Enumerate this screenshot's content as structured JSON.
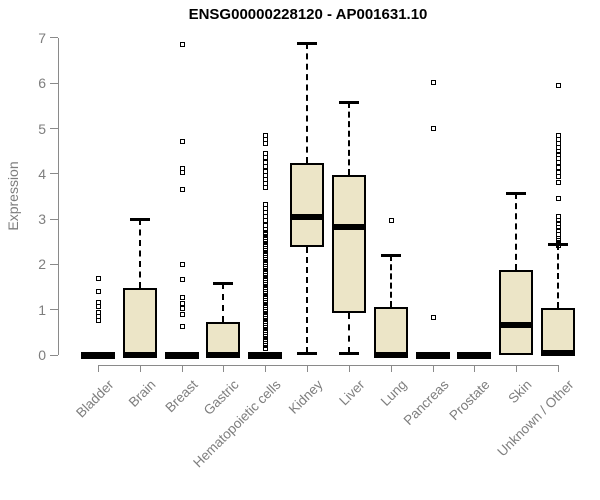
{
  "colors": {
    "box_fill": "#ECE5C7",
    "box_border": "#000000",
    "median": "#000000",
    "whisker": "#000000",
    "outlier": "#000000",
    "axis": "#8A8A8A",
    "tick_label": "#7E7E7E",
    "title": "#000000",
    "background": "#FFFFFF"
  },
  "chart_data": {
    "type": "boxplot",
    "title": "ENSG00000228120 - AP001631.10",
    "ylabel": "Expression",
    "xlabel": "",
    "ylim": [
      0,
      7
    ],
    "yticks": [
      0,
      1,
      2,
      3,
      4,
      5,
      6,
      7
    ],
    "grid": false,
    "legend": "none",
    "categories": [
      "Bladder",
      "Brain",
      "Breast",
      "Gastric",
      "Hematopoietic cells",
      "Kidney",
      "Liver",
      "Lung",
      "Pancreas",
      "Prostate",
      "Skin",
      "Unknown / Other"
    ],
    "series": [
      {
        "name": "Bladder",
        "low": 0,
        "q1": 0,
        "median": 0,
        "q3": 0,
        "high": 0,
        "outliers": [
          1.68,
          1.4,
          1.15,
          1.07,
          0.93,
          0.85,
          0.77
        ]
      },
      {
        "name": "Brain",
        "low": 0,
        "q1": 0,
        "median": 0,
        "q3": 1.48,
        "high": 3.0,
        "outliers": []
      },
      {
        "name": "Breast",
        "low": 0,
        "q1": 0,
        "median": 0,
        "q3": 0,
        "high": 0,
        "outliers": [
          6.85,
          4.72,
          4.12,
          4.04,
          3.66,
          1.99,
          1.66,
          1.26,
          1.14,
          1.02,
          0.9,
          0.62
        ]
      },
      {
        "name": "Gastric",
        "low": 0,
        "q1": 0,
        "median": 0,
        "q3": 0.73,
        "high": 1.58,
        "outliers": []
      },
      {
        "name": "Hematopoietic cells",
        "low": 0,
        "q1": 0,
        "median": 0,
        "q3": 0,
        "high": 0,
        "outliers": [
          0.15,
          0.2,
          0.25,
          0.3,
          0.35,
          0.4,
          0.45,
          0.5,
          0.55,
          0.6,
          0.65,
          0.7,
          0.75,
          0.8,
          0.85,
          0.9,
          0.95,
          1.0,
          1.05,
          1.1,
          1.15,
          1.2,
          1.25,
          1.3,
          1.35,
          1.4,
          1.45,
          1.5,
          1.55,
          1.6,
          1.65,
          1.7,
          1.75,
          1.8,
          1.85,
          1.9,
          1.95,
          2.0,
          2.05,
          2.1,
          2.15,
          2.2,
          2.25,
          2.3,
          2.35,
          2.4,
          2.45,
          2.5,
          2.55,
          2.6,
          2.65,
          2.7,
          2.78,
          2.87,
          2.96,
          3.05,
          3.14,
          3.23,
          3.32,
          3.7,
          3.79,
          3.88,
          3.97,
          4.06,
          4.16,
          4.26,
          4.36,
          4.45,
          4.66,
          4.75,
          4.84
        ]
      },
      {
        "name": "Kidney",
        "low": 0.04,
        "q1": 2.38,
        "median": 3.05,
        "q3": 4.25,
        "high": 6.88,
        "outliers": []
      },
      {
        "name": "Liver",
        "low": 0.04,
        "q1": 0.93,
        "median": 2.83,
        "q3": 3.97,
        "high": 5.58,
        "outliers": []
      },
      {
        "name": "Lung",
        "low": 0,
        "q1": 0,
        "median": 0,
        "q3": 1.07,
        "high": 2.2,
        "outliers": [
          2.97
        ]
      },
      {
        "name": "Pancreas",
        "low": 0,
        "q1": 0,
        "median": 0,
        "q3": 0,
        "high": 0,
        "outliers": [
          6.02,
          5.0,
          0.82
        ]
      },
      {
        "name": "Prostate",
        "low": 0,
        "q1": 0,
        "median": 0,
        "q3": 0,
        "high": 0,
        "outliers": []
      },
      {
        "name": "Skin",
        "low": 0,
        "q1": 0,
        "median": 0.66,
        "q3": 1.88,
        "high": 3.58,
        "outliers": []
      },
      {
        "name": "Unknown / Other",
        "low": 0,
        "q1": 0,
        "median": 0.04,
        "q3": 1.04,
        "high": 2.45,
        "outliers": [
          5.95,
          4.85,
          4.76,
          4.67,
          4.58,
          4.5,
          4.42,
          4.33,
          4.24,
          4.14,
          4.04,
          3.94,
          3.82,
          3.46,
          3.06,
          2.97,
          2.9,
          2.82,
          2.74,
          2.66,
          2.58,
          2.52,
          2.47,
          2.42
        ]
      }
    ]
  }
}
